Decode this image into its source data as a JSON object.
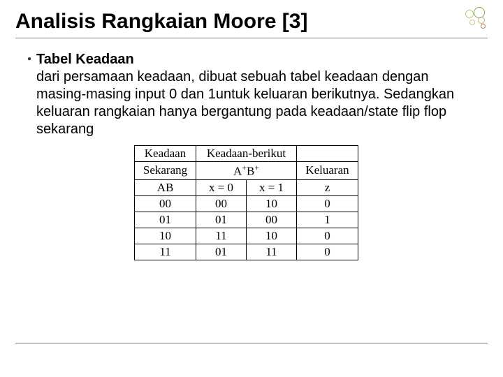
{
  "title": "Analisis Rangkaian Moore [3]",
  "subhead": "Tabel Keadaan",
  "paragraph": "dari persamaan keadaan, dibuat sebuah tabel keadaan dengan masing-masing input 0 dan 1untuk keluaran berikutnya. Sedangkan keluaran rangkaian hanya bergantung pada keadaan/state flip flop sekarang",
  "table": {
    "header_row1": {
      "c1": "Keadaan",
      "c2": "Keadaan-berikut",
      "c3": ""
    },
    "header_row2": {
      "c1": "Sekarang",
      "c2_html": "A<span class=\"sup\">+</span>B<span class=\"sup\">+</span>",
      "c3": "Keluaran"
    },
    "header_row3": {
      "c1": "AB",
      "c2": "x = 0",
      "c3": "x = 1",
      "c4": "z"
    },
    "rows": [
      {
        "ab": "00",
        "x0": "00",
        "x1": "10",
        "z": "0"
      },
      {
        "ab": "01",
        "x0": "01",
        "x1": "00",
        "z": "1"
      },
      {
        "ab": "10",
        "x0": "11",
        "x1": "10",
        "z": "0"
      },
      {
        "ab": "11",
        "x0": "01",
        "x1": "11",
        "z": "0"
      }
    ]
  },
  "deco_colors": [
    "#8aa84b",
    "#b7cf6f",
    "#c9a96a",
    "#d9c48f",
    "#a58c4f"
  ]
}
